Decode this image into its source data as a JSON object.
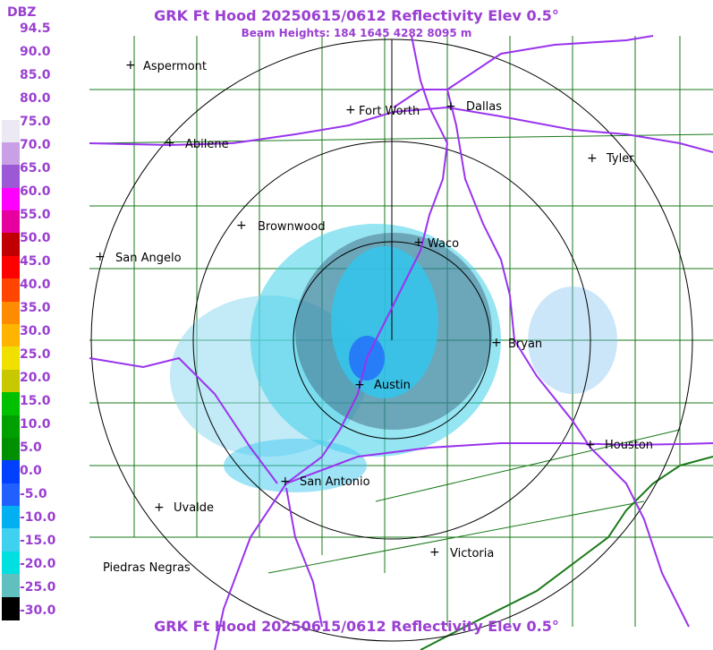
{
  "title_top": "GRK Ft Hood 20250615/0612 Reflectivity Elev 0.5°",
  "subtitle": "Beam Heights: 184 1645 4282 8095 m",
  "title_bottom": "GRK Ft Hood 20250615/0612 Reflectivity Elev 0.5°",
  "legend": {
    "label": "DBZ",
    "ticks": [
      "94.5",
      "90.0",
      "85.0",
      "80.0",
      "75.0",
      "70.0",
      "65.0",
      "60.0",
      "55.0",
      "50.0",
      "45.0",
      "40.0",
      "35.0",
      "30.0",
      "25.0",
      "20.0",
      "15.0",
      "10.0",
      "5.0",
      "0.0",
      "-5.0",
      "-10.0",
      "-15.0",
      "-20.0",
      "-25.0",
      "-30.0"
    ],
    "colors": [
      "#ffffff",
      "#ffffff",
      "#ffffff",
      "#ffffff",
      "#ece8f4",
      "#c9a0e6",
      "#9b59d6",
      "#ff00ff",
      "#e600a0",
      "#c00000",
      "#ff0000",
      "#ff4500",
      "#ff8c00",
      "#ffb400",
      "#f0e000",
      "#c8c800",
      "#00c000",
      "#00a000",
      "#009000",
      "#0040ff",
      "#2060ff",
      "#00b0f0",
      "#40d0f0",
      "#00e0e0",
      "#60c0c0",
      "#000000"
    ]
  },
  "cities": [
    {
      "name": "Aspermont"
    },
    {
      "name": "Fort Worth"
    },
    {
      "name": "Dallas"
    },
    {
      "name": "Abilene"
    },
    {
      "name": "Tyler"
    },
    {
      "name": "Brownwood"
    },
    {
      "name": "Waco"
    },
    {
      "name": "San Angelo"
    },
    {
      "name": "Bryan"
    },
    {
      "name": "Austin"
    },
    {
      "name": "Houston"
    },
    {
      "name": "San Antonio"
    },
    {
      "name": "Uvalde"
    },
    {
      "name": "Victoria"
    },
    {
      "name": "Piedras Negras"
    }
  ],
  "colors": {
    "title": "#9a3fd2",
    "highway": "#9933ee",
    "county": "#1a7a1a",
    "ring": "#000000",
    "echo_light": "#40d8e8",
    "echo_mid": "#00b0e0",
    "echo_blue": "#2060ff"
  }
}
